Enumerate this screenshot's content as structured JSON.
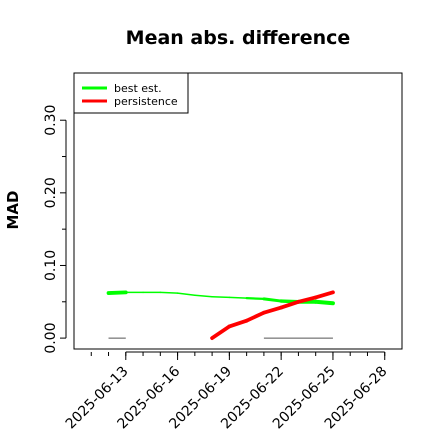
{
  "chart_data": {
    "type": "line",
    "title": "Mean abs. difference",
    "xlabel": "",
    "ylabel": "MAD",
    "xlim": [
      "2025-06-10",
      "2025-06-29"
    ],
    "ylim": [
      -0.015,
      0.365
    ],
    "yticks": [
      {
        "value": 0.0,
        "label": "0.00"
      },
      {
        "value": 0.1,
        "label": "0.10"
      },
      {
        "value": 0.2,
        "label": "0.20"
      },
      {
        "value": 0.3,
        "label": "0.30"
      }
    ],
    "xticks": [
      {
        "value": "2025-06-13",
        "label": "2025-06-13"
      },
      {
        "value": "2025-06-16",
        "label": "2025-06-16"
      },
      {
        "value": "2025-06-19",
        "label": "2025-06-19"
      },
      {
        "value": "2025-06-22",
        "label": "2025-06-22"
      },
      {
        "value": "2025-06-25",
        "label": "2025-06-25"
      },
      {
        "value": "2025-06-28",
        "label": "2025-06-28"
      }
    ],
    "legend_position": "top-left",
    "series": [
      {
        "name": "best est.",
        "color": "#00ff00",
        "x": [
          "2025-06-12",
          "2025-06-13",
          "2025-06-14",
          "2025-06-15",
          "2025-06-16",
          "2025-06-17",
          "2025-06-18",
          "2025-06-19",
          "2025-06-20",
          "2025-06-21",
          "2025-06-22",
          "2025-06-23",
          "2025-06-24",
          "2025-06-25"
        ],
        "values": [
          0.062,
          0.063,
          0.063,
          0.063,
          0.062,
          0.059,
          0.057,
          0.056,
          0.055,
          0.054,
          0.051,
          0.05,
          0.05,
          0.048
        ]
      },
      {
        "name": "persistence",
        "color": "#ff0000",
        "x": [
          "2025-06-18",
          "2025-06-19",
          "2025-06-20",
          "2025-06-21",
          "2025-06-22",
          "2025-06-23",
          "2025-06-24",
          "2025-06-25"
        ],
        "values": [
          0.0,
          0.016,
          0.024,
          0.035,
          0.042,
          0.05,
          0.056,
          0.063
        ]
      }
    ],
    "zero_segments": [
      {
        "x": [
          "2025-06-12",
          "2025-06-13"
        ]
      },
      {
        "x": [
          "2025-06-21",
          "2025-06-25"
        ]
      }
    ]
  }
}
